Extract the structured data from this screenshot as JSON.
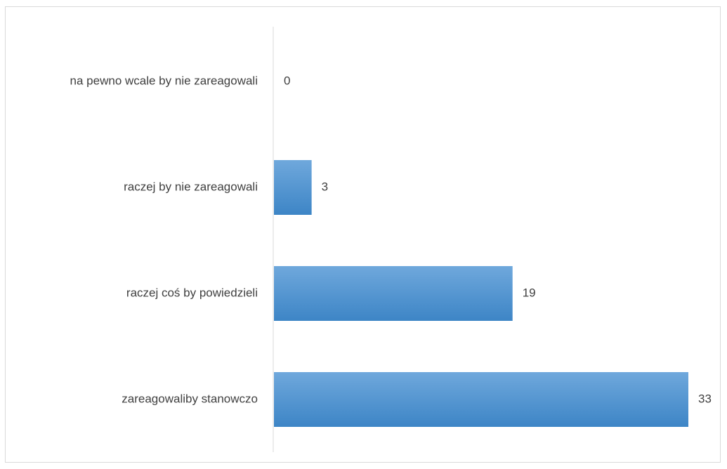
{
  "chart_data": {
    "type": "bar",
    "orientation": "horizontal",
    "categories": [
      "na pewno wcale by nie zareagowali",
      "raczej by nie zareagowali",
      "raczej coś by powiedzieli",
      "zareagowaliby stanowczo"
    ],
    "values": [
      0,
      3,
      19,
      33
    ],
    "data_labels": [
      "0",
      "3",
      "19",
      "33"
    ],
    "xlim": [
      0,
      33
    ],
    "grid": false,
    "legend": "none",
    "bar_color_light": "#6fa8dc",
    "bar_color_dark": "#3d85c6",
    "axis_color": "#d9d9d9",
    "text_color": "#404040"
  }
}
